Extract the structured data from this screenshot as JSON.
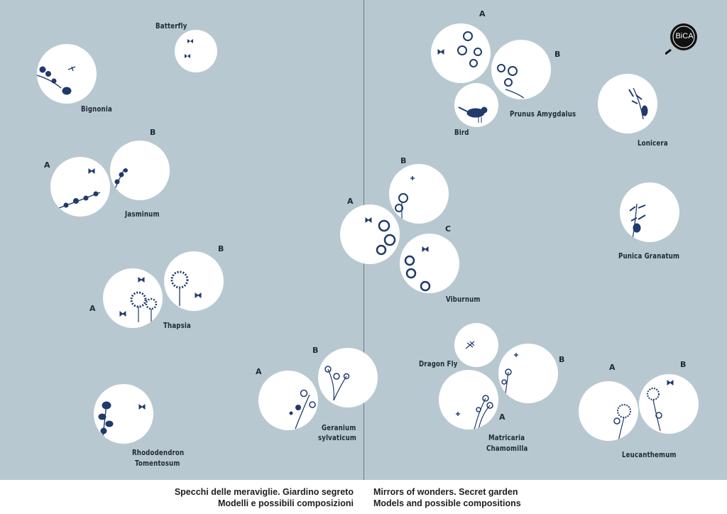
{
  "footer": {
    "it_line1": "Specchi delle meraviglie. Giardino segreto",
    "it_line2": "Modelli e possibili composizioni",
    "en_line1": "Mirrors of wonders. Secret garden",
    "en_line2": "Models and possible compositions"
  },
  "logo": {
    "text": "BiCA"
  },
  "colors": {
    "background": "#b7c8d0",
    "ink": "#1f3a6b",
    "circle": "#ffffff"
  },
  "labels": {
    "batterfly": "Batterfly",
    "bignonia": "Bignonia",
    "jasminum": "Jasminum",
    "thapsia": "Thapsia",
    "rhododendron_1": "Rhododendron",
    "rhododendron_2": "Tomentosum",
    "geranium_1": "Geranium",
    "geranium_2": "sylvaticum",
    "prunus": "Prunus Amygdalus",
    "bird": "Bird",
    "lonicera": "Lonicera",
    "punica": "Punica Granatum",
    "viburnum": "Viburnum",
    "dragonfly": "Dragon Fly",
    "matricaria_1": "Matricaria",
    "matricaria_2": "Chamomilla",
    "leucanthemum": "Leucanthemum"
  },
  "letters": {
    "a": "A",
    "b": "B",
    "c": "C"
  }
}
